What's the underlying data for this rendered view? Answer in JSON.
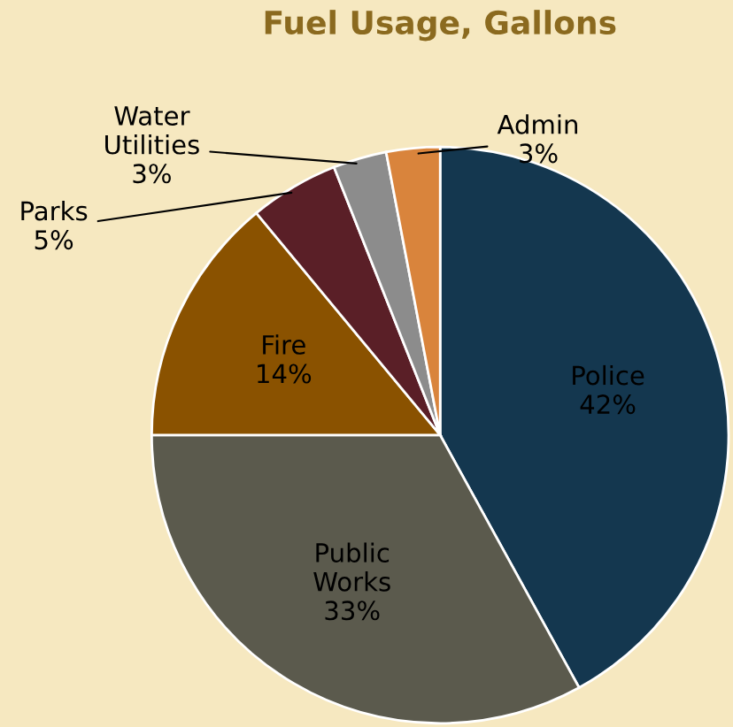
{
  "chart_data": {
    "type": "pie",
    "title": "Fuel Usage, Gallons",
    "categories": [
      "Police",
      "Public Works",
      "Fire",
      "Parks",
      "Water Utilities",
      "Admin"
    ],
    "values": [
      42,
      33,
      14,
      5,
      3,
      3
    ],
    "colors": [
      "#14374f",
      "#5b5a4d",
      "#8a5200",
      "#5a1f27",
      "#8c8c8c",
      "#d9843c"
    ],
    "value_labels": [
      "42%",
      "33%",
      "14%",
      "5%",
      "3%",
      "3%"
    ]
  }
}
